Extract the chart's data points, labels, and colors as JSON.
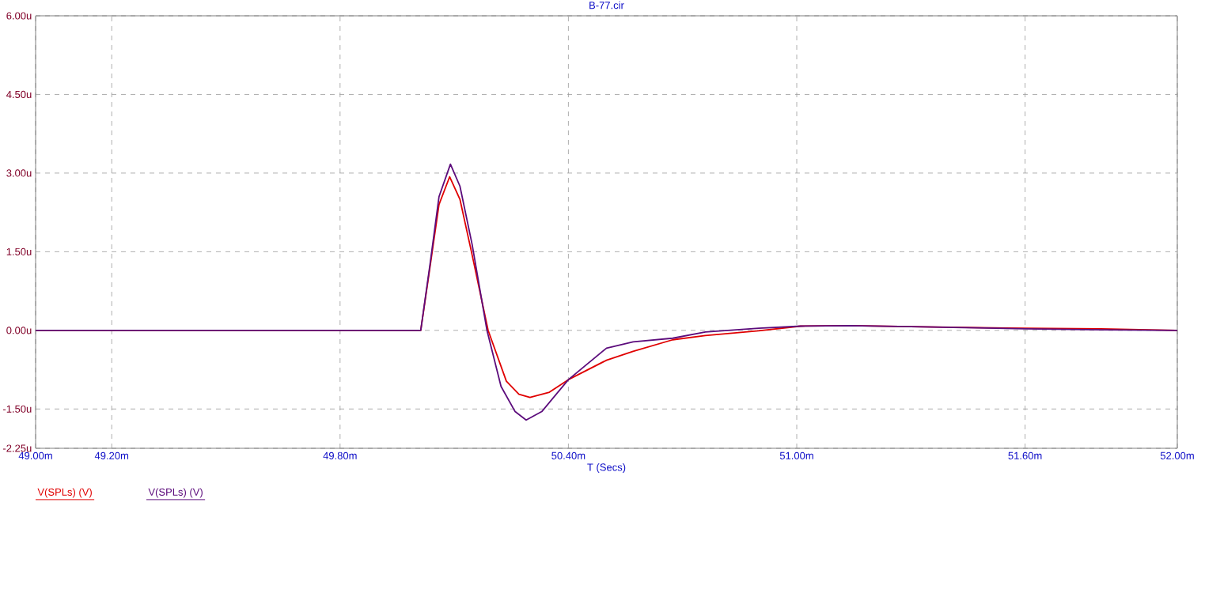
{
  "chart_data": {
    "type": "line",
    "title": "B-77.cir",
    "xlabel": "T (Secs)",
    "xlim": [
      49.0,
      52.0
    ],
    "xticks": [
      {
        "value": 49.0,
        "label": "49.00m"
      },
      {
        "value": 49.2,
        "label": "49.20m"
      },
      {
        "value": 49.8,
        "label": "49.80m"
      },
      {
        "value": 50.4,
        "label": "50.40m"
      },
      {
        "value": 51.0,
        "label": "51.00m"
      },
      {
        "value": 51.6,
        "label": "51.60m"
      },
      {
        "value": 52.0,
        "label": "52.00m"
      }
    ],
    "ylim": [
      -2.25,
      6.0
    ],
    "yticks": [
      {
        "value": -2.25,
        "label": "-2.25u"
      },
      {
        "value": -1.5,
        "label": "-1.50u"
      },
      {
        "value": 0,
        "label": "0.00u"
      },
      {
        "value": 1.5,
        "label": "1.50u"
      },
      {
        "value": 3.0,
        "label": "3.00u"
      },
      {
        "value": 4.5,
        "label": "4.50u"
      },
      {
        "value": 6.0,
        "label": "6.00u"
      }
    ],
    "grid": true,
    "legend": "bottom left",
    "line_style": "solid",
    "marker": "none",
    "series": [
      {
        "name": "V(SPLs) (V)",
        "color": "#e00000",
        "x": [
          49.0,
          50.012,
          50.036,
          50.06,
          50.088,
          50.115,
          50.147,
          50.189,
          50.237,
          50.27,
          50.299,
          50.35,
          50.4,
          50.5,
          50.57,
          50.674,
          50.76,
          50.9,
          51.01,
          51.14,
          51.3,
          51.6,
          51.8,
          52.0
        ],
        "values": [
          0,
          0,
          1.19,
          2.4,
          2.93,
          2.5,
          1.44,
          0,
          -0.97,
          -1.22,
          -1.28,
          -1.18,
          -0.94,
          -0.57,
          -0.4,
          -0.18,
          -0.1,
          -0.01,
          0.08,
          0.09,
          0.07,
          0.04,
          0.03,
          0
        ]
      },
      {
        "name": "V(SPLs) (V)",
        "color": "#5c0c7c",
        "x": [
          49.0,
          50.012,
          50.036,
          50.06,
          50.09,
          50.115,
          50.147,
          50.186,
          50.223,
          50.26,
          50.289,
          50.33,
          50.4,
          50.5,
          50.57,
          50.674,
          50.76,
          50.9,
          51.01,
          51.14,
          51.3,
          51.6,
          51.8,
          52.0
        ],
        "values": [
          0,
          0,
          1.24,
          2.55,
          3.17,
          2.75,
          1.64,
          0,
          -1.07,
          -1.55,
          -1.71,
          -1.55,
          -0.94,
          -0.34,
          -0.22,
          -0.15,
          -0.03,
          0.04,
          0.08,
          0.09,
          0.07,
          0.03,
          0.01,
          0
        ]
      }
    ]
  }
}
